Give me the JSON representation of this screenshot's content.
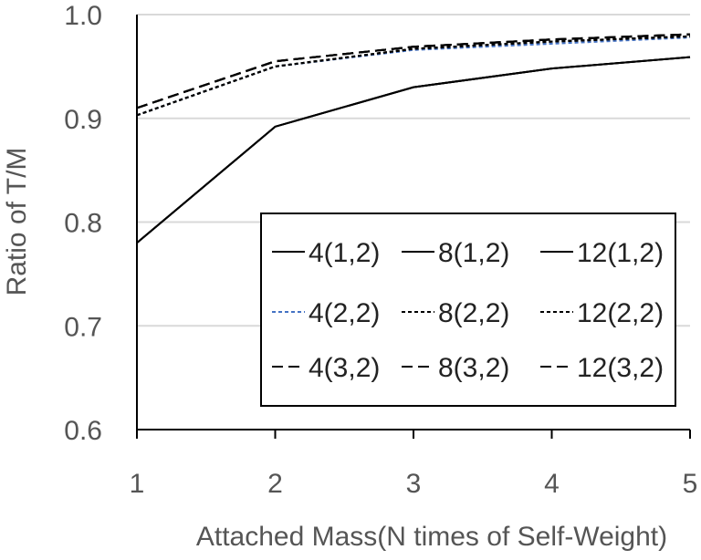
{
  "chart_data": {
    "type": "line",
    "title": "",
    "xlabel": "Attached Mass(N times of Self-Weight)",
    "ylabel": "Ratio of T/M",
    "xlim": [
      1,
      5
    ],
    "ylim": [
      0.6,
      1.0
    ],
    "x_ticks": [
      "1",
      "2",
      "3",
      "4",
      "5"
    ],
    "y_ticks": [
      "0.6",
      "0.7",
      "0.8",
      "0.9",
      "1.0"
    ],
    "grid": "horizontal",
    "legend_position": "lower-right",
    "legend_columns": 3,
    "x": [
      1,
      2,
      3,
      4,
      5
    ],
    "series": [
      {
        "name": "4(1,2)",
        "color": "#000000",
        "dash": "solid",
        "values": [
          0.78,
          0.892,
          0.93,
          0.948,
          0.959
        ]
      },
      {
        "name": "8(1,2)",
        "color": "#000000",
        "dash": "solid",
        "values": [
          0.78,
          0.892,
          0.93,
          0.948,
          0.959
        ]
      },
      {
        "name": "12(1,2)",
        "color": "#000000",
        "dash": "solid",
        "values": [
          0.78,
          0.892,
          0.93,
          0.948,
          0.959
        ]
      },
      {
        "name": "4(2,2)",
        "color": "#4472c4",
        "dash": "dotted",
        "values": [
          0.903,
          0.95,
          0.966,
          0.972,
          0.978
        ]
      },
      {
        "name": "8(2,2)",
        "color": "#000000",
        "dash": "dotted",
        "values": [
          0.903,
          0.95,
          0.967,
          0.974,
          0.979
        ]
      },
      {
        "name": "12(2,2)",
        "color": "#000000",
        "dash": "dotted",
        "values": [
          0.903,
          0.95,
          0.967,
          0.974,
          0.979
        ]
      },
      {
        "name": "4(3,2)",
        "color": "#000000",
        "dash": "dashed",
        "values": [
          0.91,
          0.955,
          0.969,
          0.976,
          0.981
        ]
      },
      {
        "name": "8(3,2)",
        "color": "#000000",
        "dash": "dashed",
        "values": [
          0.91,
          0.955,
          0.969,
          0.976,
          0.981
        ]
      },
      {
        "name": "12(3,2)",
        "color": "#000000",
        "dash": "dashed",
        "values": [
          0.91,
          0.955,
          0.969,
          0.976,
          0.981
        ]
      }
    ]
  }
}
